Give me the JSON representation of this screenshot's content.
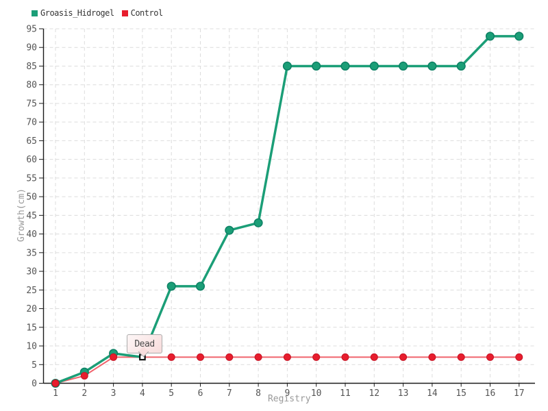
{
  "tooltip": {
    "label": "Dead"
  },
  "chart_data": {
    "type": "line",
    "title": "",
    "xlabel": "Registry",
    "ylabel": "Growth(cm)",
    "x": [
      1,
      2,
      3,
      4,
      5,
      6,
      7,
      8,
      9,
      10,
      11,
      12,
      13,
      14,
      15,
      16,
      17
    ],
    "xticks": [
      1,
      2,
      3,
      4,
      5,
      6,
      7,
      8,
      9,
      10,
      11,
      12,
      13,
      14,
      15,
      16,
      17
    ],
    "yticks": [
      0,
      5,
      10,
      15,
      20,
      25,
      30,
      35,
      40,
      45,
      50,
      55,
      60,
      65,
      70,
      75,
      80,
      85,
      90,
      95
    ],
    "ylim": [
      0,
      95
    ],
    "grid": true,
    "legend_position": "top-left",
    "series": [
      {
        "name": "Groasis_Hidrogel",
        "color": "#1b9e77",
        "line_color": "#1b9e77",
        "line_width": 3.5,
        "marker": "circle",
        "marker_radius": 5.8,
        "marker_stroke": "#0d8064",
        "marker_hidden_x": [
          4
        ],
        "values": [
          0,
          3,
          8,
          7,
          26,
          26,
          41,
          43,
          85,
          85,
          85,
          85,
          85,
          85,
          85,
          93,
          93
        ]
      },
      {
        "name": "Control",
        "color": "#e71d2d",
        "line_color": "#f0636c",
        "line_width": 2,
        "marker": "circle",
        "marker_radius": 5,
        "marker_stroke": "#c51425",
        "marker_hidden_x": [
          4
        ],
        "values": [
          0,
          2,
          7,
          7,
          7,
          7,
          7,
          7,
          7,
          7,
          7,
          7,
          7,
          7,
          7,
          7,
          7
        ],
        "annotations": [
          {
            "x": 4,
            "y": 7,
            "label": "Dead",
            "marker": "open-square"
          }
        ]
      }
    ],
    "style": {
      "grid_color": "#dcdcdc",
      "axis_color": "#1a1a1a",
      "tick_label_color": "#555555",
      "axis_title_color": "#999999",
      "dead_marker_fill": "#ffffff",
      "dead_marker_stroke": "#111111"
    }
  }
}
